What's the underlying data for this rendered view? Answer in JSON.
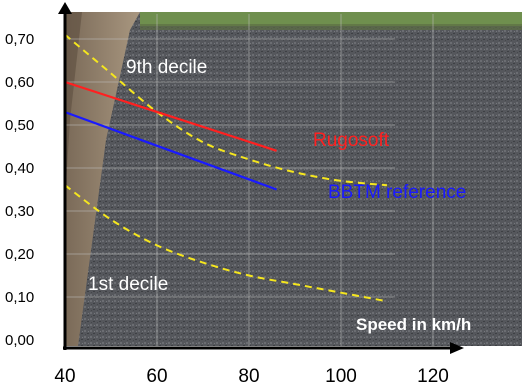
{
  "chart_data": {
    "type": "line",
    "xlim": [
      40,
      130
    ],
    "ylim": [
      0,
      0.72
    ],
    "x_ticks": [
      "40",
      "60",
      "80",
      "100",
      "120"
    ],
    "x_tick_values": [
      40,
      60,
      80,
      100,
      120
    ],
    "y_ticks": [
      "0,00",
      "0,10",
      "0,20",
      "0,30",
      "0,40",
      "0,50",
      "0,60",
      "0,70"
    ],
    "y_tick_values": [
      0,
      0.1,
      0.2,
      0.3,
      0.4,
      0.5,
      0.6,
      0.7
    ],
    "xlabel": "Speed in km/h",
    "grid": true,
    "series": [
      {
        "name": "9th decile",
        "color": "#f5e61e",
        "dash": true,
        "x": [
          40,
          50,
          60,
          70,
          80,
          90,
          100,
          110
        ],
        "y": [
          0.71,
          0.62,
          0.53,
          0.46,
          0.42,
          0.39,
          0.37,
          0.36
        ]
      },
      {
        "name": "Rugosoft",
        "color": "#ff2020",
        "dash": false,
        "x": [
          40,
          86
        ],
        "y": [
          0.6,
          0.44
        ]
      },
      {
        "name": "BBTM reference",
        "color": "#1a1aff",
        "dash": false,
        "x": [
          40,
          86
        ],
        "y": [
          0.53,
          0.35
        ]
      },
      {
        "name": "1st decile",
        "color": "#f5e61e",
        "dash": true,
        "x": [
          40,
          50,
          60,
          70,
          80,
          90,
          100,
          110
        ],
        "y": [
          0.36,
          0.28,
          0.22,
          0.18,
          0.15,
          0.13,
          0.11,
          0.09
        ]
      }
    ]
  }
}
